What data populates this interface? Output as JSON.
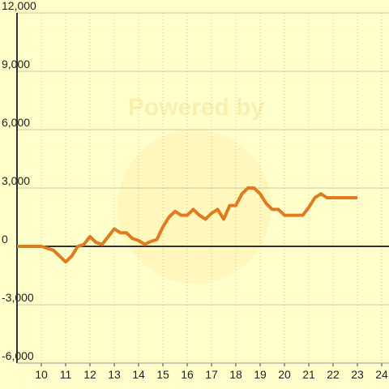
{
  "chart_data": {
    "type": "line",
    "watermark": "Powered by",
    "x": [
      9,
      10,
      10.5,
      11,
      11.25,
      11.5,
      11.75,
      12,
      12.25,
      12.5,
      12.75,
      13,
      13.25,
      13.5,
      13.75,
      14,
      14.25,
      14.5,
      14.75,
      15,
      15.25,
      15.5,
      15.75,
      16,
      16.25,
      16.5,
      16.75,
      17,
      17.25,
      17.5,
      17.75,
      18,
      18.25,
      18.5,
      18.75,
      19,
      19.25,
      19.5,
      19.75,
      20,
      20.25,
      20.5,
      20.75,
      21,
      21.25,
      21.5,
      21.75,
      22,
      23
    ],
    "series": [
      {
        "color": "#e07b20",
        "values": [
          0,
          0,
          -200,
          -800,
          -500,
          0,
          100,
          500,
          200,
          100,
          500,
          900,
          700,
          700,
          400,
          300,
          100,
          250,
          350,
          1000,
          1500,
          1800,
          1600,
          1600,
          1900,
          1600,
          1400,
          1700,
          1900,
          1400,
          2100,
          2100,
          2700,
          3000,
          3000,
          2700,
          2200,
          1900,
          1900,
          1600,
          1600,
          1600,
          1600,
          2000,
          2500,
          2700,
          2500,
          2500,
          2500
        ]
      }
    ],
    "xlim": [
      9,
      24.3
    ],
    "ylim": [
      -6000,
      12000
    ],
    "xticks": [
      10,
      11,
      12,
      13,
      14,
      15,
      16,
      17,
      18,
      19,
      20,
      21,
      22,
      23,
      24
    ],
    "yticks": [
      {
        "value": -6000,
        "label": "-6,000"
      },
      {
        "value": -3000,
        "label": "-3,000"
      },
      0,
      {
        "value": 3000,
        "label": "3,000"
      },
      {
        "value": 6000,
        "label": "6,000"
      },
      {
        "value": 9000,
        "label": "9,000"
      },
      {
        "value": 12000,
        "label": "12,000"
      }
    ],
    "grid": true
  }
}
